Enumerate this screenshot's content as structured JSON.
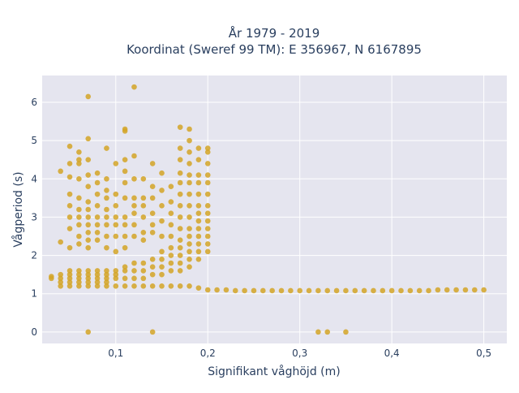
{
  "chart_data": {
    "type": "scatter",
    "title_line1": "År 1979 - 2019",
    "title_line2": "Koordinat (Sweref 99 TM): E 356967, N 6167895",
    "xlabel": "Signifikant våghöjd (m)",
    "ylabel": "Vågperiod (s)",
    "xlim": [
      0.02,
      0.525
    ],
    "ylim": [
      -0.3,
      6.7
    ],
    "x_ticks": [
      0.1,
      0.2,
      0.3,
      0.4,
      0.5
    ],
    "x_tick_labels": [
      "0,1",
      "0,2",
      "0,3",
      "0,4",
      "0,5"
    ],
    "y_ticks": [
      0,
      1,
      2,
      3,
      4,
      5,
      6
    ],
    "y_tick_labels": [
      "0",
      "1",
      "2",
      "3",
      "4",
      "5",
      "6"
    ],
    "grid": true,
    "marker_color": "#d4a526",
    "background_color": "#e5e5ef",
    "points": [
      [
        0.03,
        1.4
      ],
      [
        0.03,
        1.45
      ],
      [
        0.04,
        1.2
      ],
      [
        0.04,
        1.3
      ],
      [
        0.04,
        1.4
      ],
      [
        0.04,
        1.5
      ],
      [
        0.04,
        2.35
      ],
      [
        0.04,
        4.2
      ],
      [
        0.05,
        1.2
      ],
      [
        0.05,
        1.3
      ],
      [
        0.05,
        1.4
      ],
      [
        0.05,
        1.5
      ],
      [
        0.05,
        1.6
      ],
      [
        0.05,
        2.2
      ],
      [
        0.05,
        2.7
      ],
      [
        0.05,
        3.0
      ],
      [
        0.05,
        3.3
      ],
      [
        0.05,
        3.6
      ],
      [
        0.05,
        4.05
      ],
      [
        0.05,
        4.4
      ],
      [
        0.05,
        4.85
      ],
      [
        0.06,
        1.2
      ],
      [
        0.06,
        1.3
      ],
      [
        0.06,
        1.4
      ],
      [
        0.06,
        1.5
      ],
      [
        0.06,
        1.6
      ],
      [
        0.06,
        2.3
      ],
      [
        0.06,
        2.5
      ],
      [
        0.06,
        2.8
      ],
      [
        0.06,
        3.0
      ],
      [
        0.06,
        3.2
      ],
      [
        0.06,
        3.5
      ],
      [
        0.06,
        4.0
      ],
      [
        0.06,
        4.4
      ],
      [
        0.06,
        4.5
      ],
      [
        0.06,
        4.7
      ],
      [
        0.07,
        0.0
      ],
      [
        0.07,
        1.2
      ],
      [
        0.07,
        1.3
      ],
      [
        0.07,
        1.4
      ],
      [
        0.07,
        1.5
      ],
      [
        0.07,
        1.6
      ],
      [
        0.07,
        2.2
      ],
      [
        0.07,
        2.4
      ],
      [
        0.07,
        2.6
      ],
      [
        0.07,
        2.8
      ],
      [
        0.07,
        3.0
      ],
      [
        0.07,
        3.2
      ],
      [
        0.07,
        3.4
      ],
      [
        0.07,
        3.8
      ],
      [
        0.07,
        4.1
      ],
      [
        0.07,
        4.5
      ],
      [
        0.07,
        5.05
      ],
      [
        0.07,
        6.15
      ],
      [
        0.08,
        1.2
      ],
      [
        0.08,
        1.3
      ],
      [
        0.08,
        1.4
      ],
      [
        0.08,
        1.5
      ],
      [
        0.08,
        1.6
      ],
      [
        0.08,
        2.4
      ],
      [
        0.08,
        2.6
      ],
      [
        0.08,
        2.8
      ],
      [
        0.08,
        3.0
      ],
      [
        0.08,
        3.3
      ],
      [
        0.08,
        3.6
      ],
      [
        0.08,
        3.9
      ],
      [
        0.08,
        4.15
      ],
      [
        0.09,
        1.2
      ],
      [
        0.09,
        1.3
      ],
      [
        0.09,
        1.4
      ],
      [
        0.09,
        1.5
      ],
      [
        0.09,
        1.6
      ],
      [
        0.09,
        2.2
      ],
      [
        0.09,
        2.5
      ],
      [
        0.09,
        2.8
      ],
      [
        0.09,
        3.0
      ],
      [
        0.09,
        3.2
      ],
      [
        0.09,
        3.5
      ],
      [
        0.09,
        3.7
      ],
      [
        0.09,
        4.0
      ],
      [
        0.09,
        4.8
      ],
      [
        0.1,
        1.2
      ],
      [
        0.1,
        1.4
      ],
      [
        0.1,
        1.5
      ],
      [
        0.1,
        1.6
      ],
      [
        0.1,
        2.1
      ],
      [
        0.1,
        2.5
      ],
      [
        0.1,
        2.8
      ],
      [
        0.1,
        3.0
      ],
      [
        0.1,
        3.3
      ],
      [
        0.1,
        3.6
      ],
      [
        0.1,
        4.4
      ],
      [
        0.11,
        1.2
      ],
      [
        0.11,
        1.4
      ],
      [
        0.11,
        1.6
      ],
      [
        0.11,
        1.7
      ],
      [
        0.11,
        2.2
      ],
      [
        0.11,
        2.5
      ],
      [
        0.11,
        2.8
      ],
      [
        0.11,
        3.0
      ],
      [
        0.11,
        3.5
      ],
      [
        0.11,
        3.9
      ],
      [
        0.11,
        4.2
      ],
      [
        0.11,
        4.5
      ],
      [
        0.11,
        5.25
      ],
      [
        0.11,
        5.3
      ],
      [
        0.12,
        1.2
      ],
      [
        0.12,
        1.4
      ],
      [
        0.12,
        1.6
      ],
      [
        0.12,
        1.8
      ],
      [
        0.12,
        2.5
      ],
      [
        0.12,
        2.8
      ],
      [
        0.12,
        3.1
      ],
      [
        0.12,
        3.3
      ],
      [
        0.12,
        3.5
      ],
      [
        0.12,
        4.0
      ],
      [
        0.12,
        4.6
      ],
      [
        0.12,
        6.4
      ],
      [
        0.13,
        1.2
      ],
      [
        0.13,
        1.4
      ],
      [
        0.13,
        1.6
      ],
      [
        0.13,
        1.8
      ],
      [
        0.13,
        2.4
      ],
      [
        0.13,
        2.6
      ],
      [
        0.13,
        3.0
      ],
      [
        0.13,
        3.3
      ],
      [
        0.13,
        3.5
      ],
      [
        0.13,
        4.0
      ],
      [
        0.14,
        0.0
      ],
      [
        0.14,
        1.2
      ],
      [
        0.14,
        1.5
      ],
      [
        0.14,
        1.7
      ],
      [
        0.14,
        1.9
      ],
      [
        0.14,
        2.6
      ],
      [
        0.14,
        2.8
      ],
      [
        0.14,
        3.1
      ],
      [
        0.14,
        3.5
      ],
      [
        0.14,
        3.8
      ],
      [
        0.14,
        4.4
      ],
      [
        0.15,
        1.2
      ],
      [
        0.15,
        1.5
      ],
      [
        0.15,
        1.7
      ],
      [
        0.15,
        1.9
      ],
      [
        0.15,
        2.1
      ],
      [
        0.15,
        2.5
      ],
      [
        0.15,
        2.9
      ],
      [
        0.15,
        3.3
      ],
      [
        0.15,
        3.7
      ],
      [
        0.15,
        4.15
      ],
      [
        0.16,
        1.2
      ],
      [
        0.16,
        1.6
      ],
      [
        0.16,
        1.8
      ],
      [
        0.16,
        2.0
      ],
      [
        0.16,
        2.2
      ],
      [
        0.16,
        2.5
      ],
      [
        0.16,
        2.8
      ],
      [
        0.16,
        3.1
      ],
      [
        0.16,
        3.4
      ],
      [
        0.16,
        3.8
      ],
      [
        0.17,
        1.2
      ],
      [
        0.17,
        1.6
      ],
      [
        0.17,
        1.8
      ],
      [
        0.17,
        2.0
      ],
      [
        0.17,
        2.2
      ],
      [
        0.17,
        2.4
      ],
      [
        0.17,
        2.7
      ],
      [
        0.17,
        3.0
      ],
      [
        0.17,
        3.3
      ],
      [
        0.17,
        3.6
      ],
      [
        0.17,
        3.9
      ],
      [
        0.17,
        4.15
      ],
      [
        0.17,
        4.5
      ],
      [
        0.17,
        4.8
      ],
      [
        0.17,
        5.35
      ],
      [
        0.18,
        1.2
      ],
      [
        0.18,
        1.7
      ],
      [
        0.18,
        1.9
      ],
      [
        0.18,
        2.1
      ],
      [
        0.18,
        2.3
      ],
      [
        0.18,
        2.5
      ],
      [
        0.18,
        2.7
      ],
      [
        0.18,
        3.0
      ],
      [
        0.18,
        3.3
      ],
      [
        0.18,
        3.6
      ],
      [
        0.18,
        3.9
      ],
      [
        0.18,
        4.1
      ],
      [
        0.18,
        4.4
      ],
      [
        0.18,
        4.7
      ],
      [
        0.18,
        5.0
      ],
      [
        0.18,
        5.3
      ],
      [
        0.19,
        1.15
      ],
      [
        0.19,
        1.9
      ],
      [
        0.19,
        2.1
      ],
      [
        0.19,
        2.3
      ],
      [
        0.19,
        2.5
      ],
      [
        0.19,
        2.7
      ],
      [
        0.19,
        2.9
      ],
      [
        0.19,
        3.1
      ],
      [
        0.19,
        3.3
      ],
      [
        0.19,
        3.6
      ],
      [
        0.19,
        3.9
      ],
      [
        0.19,
        4.1
      ],
      [
        0.19,
        4.5
      ],
      [
        0.19,
        4.8
      ],
      [
        0.2,
        1.1
      ],
      [
        0.2,
        2.1
      ],
      [
        0.2,
        2.3
      ],
      [
        0.2,
        2.5
      ],
      [
        0.2,
        2.7
      ],
      [
        0.2,
        2.9
      ],
      [
        0.2,
        3.1
      ],
      [
        0.2,
        3.3
      ],
      [
        0.2,
        3.6
      ],
      [
        0.2,
        3.9
      ],
      [
        0.2,
        4.1
      ],
      [
        0.2,
        4.4
      ],
      [
        0.2,
        4.7
      ],
      [
        0.2,
        4.8
      ],
      [
        0.21,
        1.1
      ],
      [
        0.22,
        1.1
      ],
      [
        0.23,
        1.08
      ],
      [
        0.24,
        1.08
      ],
      [
        0.25,
        1.08
      ],
      [
        0.26,
        1.08
      ],
      [
        0.27,
        1.08
      ],
      [
        0.28,
        1.08
      ],
      [
        0.29,
        1.08
      ],
      [
        0.3,
        1.08
      ],
      [
        0.31,
        1.08
      ],
      [
        0.32,
        1.08
      ],
      [
        0.32,
        0.0
      ],
      [
        0.33,
        1.08
      ],
      [
        0.33,
        0.0
      ],
      [
        0.34,
        1.08
      ],
      [
        0.35,
        1.08
      ],
      [
        0.35,
        0.0
      ],
      [
        0.36,
        1.08
      ],
      [
        0.37,
        1.08
      ],
      [
        0.38,
        1.08
      ],
      [
        0.39,
        1.08
      ],
      [
        0.4,
        1.08
      ],
      [
        0.41,
        1.08
      ],
      [
        0.42,
        1.08
      ],
      [
        0.43,
        1.08
      ],
      [
        0.44,
        1.08
      ],
      [
        0.45,
        1.1
      ],
      [
        0.46,
        1.1
      ],
      [
        0.47,
        1.1
      ],
      [
        0.48,
        1.1
      ],
      [
        0.49,
        1.1
      ],
      [
        0.5,
        1.1
      ]
    ]
  }
}
